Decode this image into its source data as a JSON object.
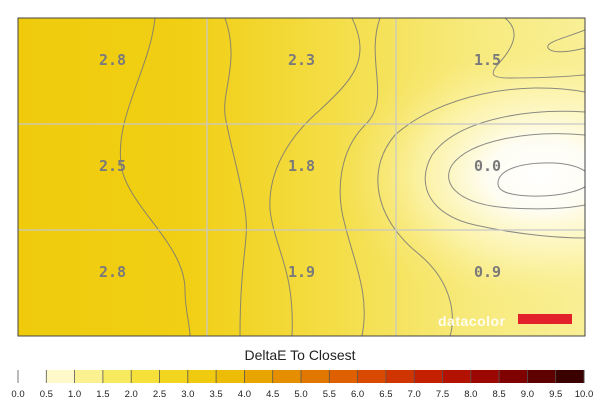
{
  "chart_data": {
    "type": "heatmap",
    "title": "DeltaE To Closest",
    "grid": true,
    "rows": 3,
    "cols": 3,
    "values": [
      [
        2.8,
        2.3,
        1.5
      ],
      [
        2.5,
        1.8,
        0.0
      ],
      [
        2.8,
        1.9,
        0.9
      ]
    ],
    "labels": [
      [
        "2.8",
        "2.3",
        "1.5"
      ],
      [
        "2.5",
        "1.8",
        "0.0"
      ],
      [
        "2.8",
        "1.9",
        "0.9"
      ]
    ],
    "scale": {
      "min": 0.0,
      "max": 10.0,
      "ticks": [
        "0.0",
        "0.5",
        "1.0",
        "1.5",
        "2.0",
        "2.5",
        "3.0",
        "3.5",
        "4.0",
        "4.5",
        "5.0",
        "5.5",
        "6.0",
        "6.5",
        "7.0",
        "7.5",
        "8.0",
        "8.5",
        "9.0",
        "9.5",
        "10.0"
      ]
    },
    "colors": [
      "#ffffff",
      "#fff8c8",
      "#fbf191",
      "#f8ea5e",
      "#f5e13a",
      "#f2d51e",
      "#efca0e",
      "#ecbc06",
      "#e8a500",
      "#e58e00",
      "#e27700",
      "#df6000",
      "#d94a00",
      "#d03400",
      "#c42000",
      "#b31200",
      "#9c0800",
      "#800200",
      "#5f0000",
      "#3a0000",
      "#000000"
    ],
    "logo": "datacolor"
  }
}
